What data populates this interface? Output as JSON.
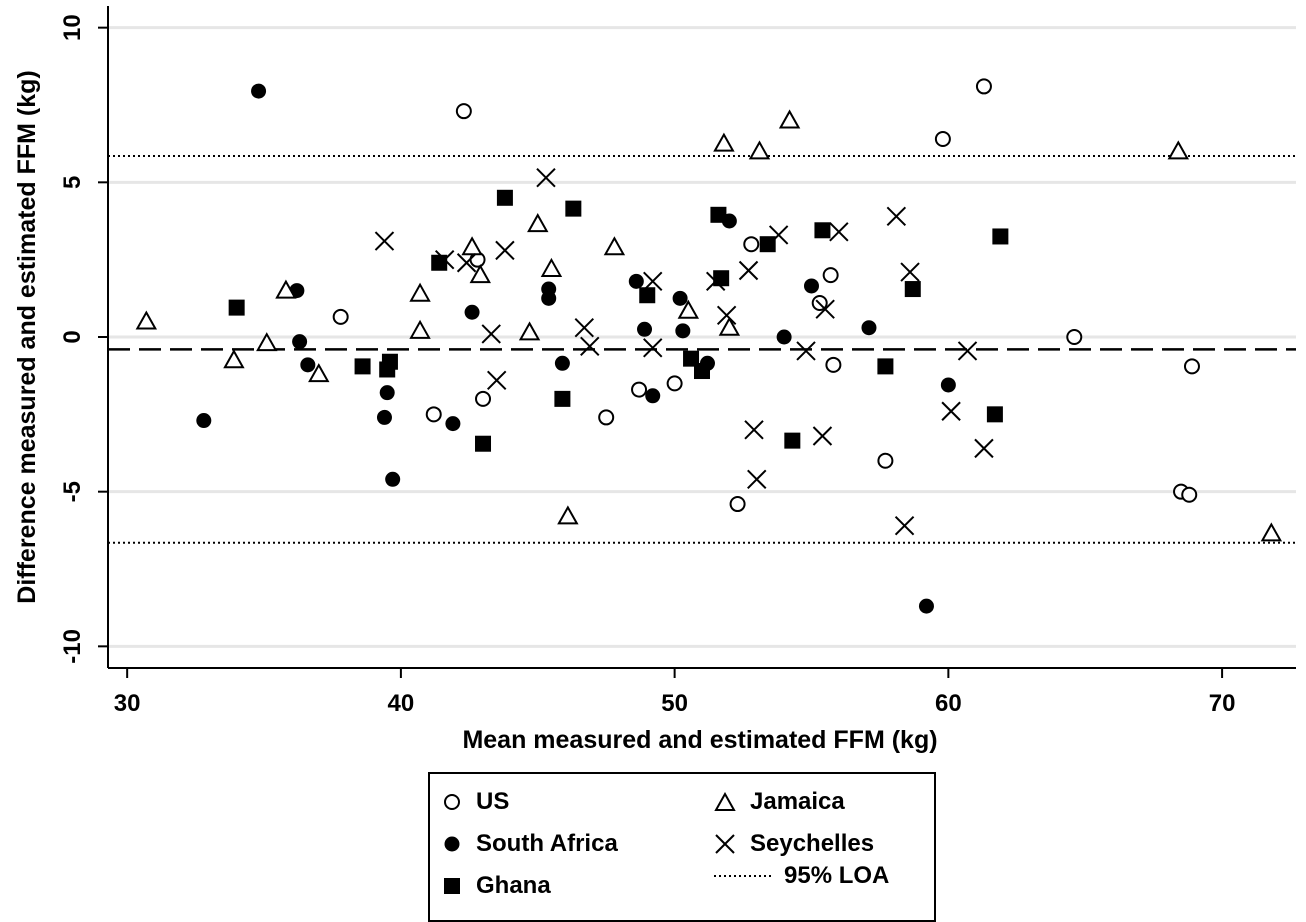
{
  "chart_data": {
    "type": "scatter",
    "xlabel": "Mean measured and estimated FFM (kg)",
    "ylabel": "Difference measured and estimated FFM (kg)",
    "xlim": [
      29.3,
      72.7
    ],
    "ylim": [
      -10.7,
      10.7
    ],
    "xticks": [
      30,
      40,
      50,
      60,
      70
    ],
    "yticks": [
      -10,
      -5,
      0,
      5,
      10
    ],
    "grid": "horizontal",
    "legend_placement": "bottom-center",
    "reference_lines": [
      {
        "name": "mean",
        "y": -0.4,
        "style": "dashed"
      },
      {
        "name": "95% LOA",
        "y": 5.85,
        "style": "dotted"
      },
      {
        "name": "95% LOA",
        "y": -6.65,
        "style": "dotted"
      }
    ],
    "series": [
      {
        "name": "US",
        "marker": "circle-open",
        "points": [
          [
            37.8,
            0.65
          ],
          [
            42.3,
            7.3
          ],
          [
            42.8,
            2.5
          ],
          [
            43.0,
            -2.0
          ],
          [
            41.2,
            -2.5
          ],
          [
            47.5,
            -2.6
          ],
          [
            48.7,
            -1.7
          ],
          [
            50.0,
            -1.5
          ],
          [
            52.3,
            -5.4
          ],
          [
            52.8,
            3.0
          ],
          [
            55.3,
            1.1
          ],
          [
            55.7,
            2.0
          ],
          [
            55.8,
            -0.9
          ],
          [
            57.7,
            -4.0
          ],
          [
            59.8,
            6.4
          ],
          [
            61.3,
            8.1
          ],
          [
            64.6,
            0.0
          ],
          [
            68.5,
            -5.0
          ],
          [
            68.8,
            -5.1
          ],
          [
            68.9,
            -0.95
          ]
        ]
      },
      {
        "name": "South Africa",
        "marker": "circle-filled",
        "points": [
          [
            32.8,
            -2.7
          ],
          [
            34.8,
            7.95
          ],
          [
            36.2,
            1.5
          ],
          [
            36.3,
            -0.15
          ],
          [
            36.6,
            -0.9
          ],
          [
            39.4,
            -2.6
          ],
          [
            39.5,
            -1.8
          ],
          [
            39.7,
            -4.6
          ],
          [
            41.9,
            -2.8
          ],
          [
            42.6,
            0.8
          ],
          [
            45.4,
            1.55
          ],
          [
            45.4,
            1.25
          ],
          [
            45.9,
            -0.85
          ],
          [
            48.6,
            1.8
          ],
          [
            48.9,
            0.25
          ],
          [
            49.2,
            -1.9
          ],
          [
            50.2,
            1.25
          ],
          [
            50.3,
            0.2
          ],
          [
            51.2,
            -0.85
          ],
          [
            52.0,
            3.75
          ],
          [
            54.0,
            0.0
          ],
          [
            55.0,
            1.65
          ],
          [
            57.1,
            0.3
          ],
          [
            59.2,
            -8.7
          ],
          [
            60.0,
            -1.55
          ]
        ]
      },
      {
        "name": "Ghana",
        "marker": "square-filled",
        "points": [
          [
            34.0,
            0.95
          ],
          [
            38.6,
            -0.95
          ],
          [
            39.5,
            -1.05
          ],
          [
            39.6,
            -0.8
          ],
          [
            41.4,
            2.4
          ],
          [
            43.0,
            -3.45
          ],
          [
            43.8,
            4.5
          ],
          [
            45.9,
            -2.0
          ],
          [
            46.3,
            4.15
          ],
          [
            49.0,
            1.35
          ],
          [
            50.6,
            -0.7
          ],
          [
            51.0,
            -1.1
          ],
          [
            51.6,
            3.95
          ],
          [
            51.7,
            1.9
          ],
          [
            53.4,
            3.0
          ],
          [
            54.3,
            -3.35
          ],
          [
            55.4,
            3.45
          ],
          [
            57.7,
            -0.95
          ],
          [
            58.7,
            1.55
          ],
          [
            61.7,
            -2.5
          ],
          [
            61.9,
            3.25
          ]
        ]
      },
      {
        "name": "Jamaica",
        "marker": "triangle-open",
        "points": [
          [
            30.7,
            0.5
          ],
          [
            33.9,
            -0.75
          ],
          [
            35.1,
            -0.2
          ],
          [
            35.8,
            1.5
          ],
          [
            37.0,
            -1.2
          ],
          [
            40.7,
            1.4
          ],
          [
            40.7,
            0.2
          ],
          [
            42.6,
            2.9
          ],
          [
            42.9,
            2.0
          ],
          [
            44.7,
            0.15
          ],
          [
            45.0,
            3.65
          ],
          [
            45.5,
            2.2
          ],
          [
            46.1,
            -5.8
          ],
          [
            47.8,
            2.9
          ],
          [
            50.5,
            0.85
          ],
          [
            51.8,
            6.25
          ],
          [
            52.0,
            0.3
          ],
          [
            53.1,
            6.0
          ],
          [
            54.2,
            7.0
          ],
          [
            68.4,
            6.0
          ],
          [
            71.8,
            -6.35
          ]
        ]
      },
      {
        "name": "Seychelles",
        "marker": "x",
        "points": [
          [
            39.4,
            3.1
          ],
          [
            41.6,
            2.5
          ],
          [
            42.4,
            2.4
          ],
          [
            43.3,
            0.1
          ],
          [
            43.5,
            -1.4
          ],
          [
            43.8,
            2.8
          ],
          [
            45.3,
            5.15
          ],
          [
            46.7,
            0.3
          ],
          [
            46.9,
            -0.3
          ],
          [
            49.2,
            1.8
          ],
          [
            49.2,
            -0.35
          ],
          [
            51.5,
            1.8
          ],
          [
            51.9,
            0.7
          ],
          [
            52.7,
            2.15
          ],
          [
            52.9,
            -3.0
          ],
          [
            53.0,
            -4.6
          ],
          [
            53.8,
            3.3
          ],
          [
            54.8,
            -0.45
          ],
          [
            55.4,
            -3.2
          ],
          [
            55.5,
            0.9
          ],
          [
            56.0,
            3.4
          ],
          [
            58.1,
            3.9
          ],
          [
            58.4,
            -6.1
          ],
          [
            58.6,
            2.1
          ],
          [
            60.1,
            -2.4
          ],
          [
            60.7,
            -0.45
          ],
          [
            61.3,
            -3.6
          ]
        ]
      }
    ]
  },
  "legend": {
    "us": "US",
    "south_africa": "South Africa",
    "ghana": "Ghana",
    "jamaica": "Jamaica",
    "seychelles": "Seychelles",
    "loa": "95% LOA"
  }
}
